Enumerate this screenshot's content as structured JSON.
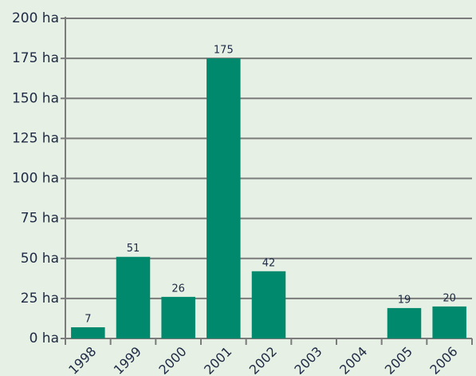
{
  "chart_data": {
    "type": "bar",
    "categories": [
      "1998",
      "1999",
      "2000",
      "2001",
      "2002",
      "2003",
      "2004",
      "2005",
      "2006"
    ],
    "values": [
      7,
      51,
      26,
      175,
      42,
      null,
      null,
      19,
      20
    ],
    "color": "#00896d",
    "ylim": [
      0,
      200
    ],
    "yticks": [
      {
        "value": 0,
        "label": "0 ha"
      },
      {
        "value": 25,
        "label": "25 ha"
      },
      {
        "value": 50,
        "label": "50 ha"
      },
      {
        "value": 75,
        "label": "75 ha"
      },
      {
        "value": 100,
        "label": "100 ha"
      },
      {
        "value": 125,
        "label": "125 ha"
      },
      {
        "value": 150,
        "label": "150 ha"
      },
      {
        "value": 175,
        "label": "175 ha"
      },
      {
        "value": 200,
        "label": "200 ha"
      }
    ],
    "grid": true
  }
}
